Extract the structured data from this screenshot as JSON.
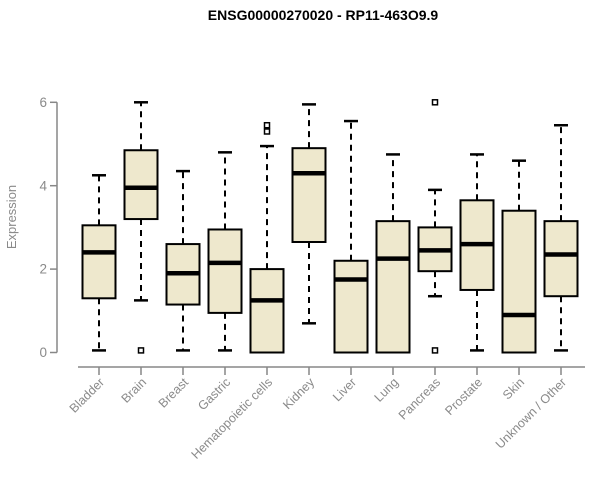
{
  "title": "ENSG00000270020 - RP11-463O9.9",
  "colors": {
    "box_fill": "#eee8cd",
    "box_stroke": "#000000",
    "median": "#000000",
    "whisker": "#000000",
    "outlier_fill": "#ffffff",
    "axis": "#878787",
    "label": "#8a8a8a",
    "title": "#000000",
    "background": "#ffffff"
  },
  "chart_data": {
    "type": "boxplot",
    "title": "ENSG00000270020 - RP11-463O9.9",
    "xlabel": "",
    "ylabel": "Expression",
    "ylim": [
      0,
      6
    ],
    "yticks": [
      0,
      2,
      4,
      6
    ],
    "grid": false,
    "legend": "none",
    "categories": [
      "Bladder",
      "Brain",
      "Breast",
      "Gastric",
      "Hematopoietic cells",
      "Kidney",
      "Liver",
      "Lung",
      "Pancreas",
      "Prostate",
      "Skin",
      "Unknown / Other"
    ],
    "series": [
      {
        "name": "Bladder",
        "low": 0.05,
        "q1": 1.3,
        "median": 2.4,
        "q3": 3.05,
        "high": 4.25,
        "outliers": []
      },
      {
        "name": "Brain",
        "low": 1.25,
        "q1": 3.2,
        "median": 3.95,
        "q3": 4.85,
        "high": 6.0,
        "outliers": [
          0.05
        ]
      },
      {
        "name": "Breast",
        "low": 0.05,
        "q1": 1.15,
        "median": 1.9,
        "q3": 2.6,
        "high": 4.35,
        "outliers": []
      },
      {
        "name": "Gastric",
        "low": 0.05,
        "q1": 0.95,
        "median": 2.15,
        "q3": 2.95,
        "high": 4.8,
        "outliers": []
      },
      {
        "name": "Hematopoietic cells",
        "low": 0.0,
        "q1": 0.0,
        "median": 1.25,
        "q3": 2.0,
        "high": 4.95,
        "outliers": [
          5.3,
          5.45
        ]
      },
      {
        "name": "Kidney",
        "low": 0.7,
        "q1": 2.65,
        "median": 4.3,
        "q3": 4.9,
        "high": 5.95,
        "outliers": []
      },
      {
        "name": "Liver",
        "low": 0.0,
        "q1": 0.0,
        "median": 1.75,
        "q3": 2.2,
        "high": 5.55,
        "outliers": []
      },
      {
        "name": "Lung",
        "low": 0.0,
        "q1": 0.0,
        "median": 2.25,
        "q3": 3.15,
        "high": 4.75,
        "outliers": []
      },
      {
        "name": "Pancreas",
        "low": 1.35,
        "q1": 1.95,
        "median": 2.45,
        "q3": 3.0,
        "high": 3.9,
        "outliers": [
          6.0,
          0.05
        ]
      },
      {
        "name": "Prostate",
        "low": 0.05,
        "q1": 1.5,
        "median": 2.6,
        "q3": 3.65,
        "high": 4.75,
        "outliers": []
      },
      {
        "name": "Skin",
        "low": 0.0,
        "q1": 0.0,
        "median": 0.9,
        "q3": 3.4,
        "high": 4.6,
        "outliers": []
      },
      {
        "name": "Unknown / Other",
        "low": 0.05,
        "q1": 1.35,
        "median": 2.35,
        "q3": 3.15,
        "high": 5.45,
        "outliers": []
      }
    ]
  }
}
